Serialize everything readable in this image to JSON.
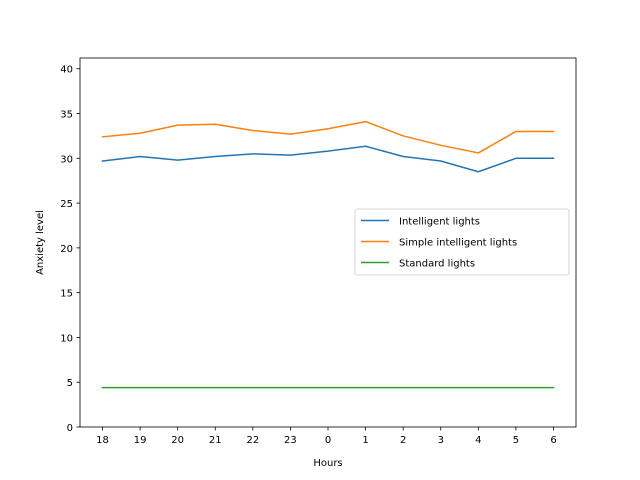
{
  "chart_data": {
    "type": "line",
    "title": "",
    "xlabel": "Hours",
    "ylabel": "Anxiety level",
    "categories": [
      "18",
      "19",
      "20",
      "21",
      "22",
      "23",
      "0",
      "1",
      "2",
      "3",
      "4",
      "5",
      "6"
    ],
    "ylim": [
      0,
      41.2
    ],
    "yticks": [
      0,
      5,
      10,
      15,
      20,
      25,
      30,
      35,
      40
    ],
    "grid": false,
    "legend_position": "center-right",
    "series": [
      {
        "name": "Intelligent lights",
        "color": "#1f77b4",
        "values": [
          29.7,
          30.2,
          29.8,
          30.2,
          30.5,
          30.35,
          30.8,
          31.35,
          30.2,
          29.7,
          28.5,
          30.0,
          30.0
        ]
      },
      {
        "name": "Simple intelligent lights",
        "color": "#ff7f0e",
        "values": [
          32.4,
          32.8,
          33.7,
          33.8,
          33.1,
          32.7,
          33.3,
          34.1,
          32.5,
          31.45,
          30.6,
          33.0,
          33.0
        ]
      },
      {
        "name": "Standard lights",
        "color": "#2ca02c",
        "values": [
          4.4,
          4.4,
          4.4,
          4.4,
          4.4,
          4.4,
          4.4,
          4.4,
          4.4,
          4.4,
          4.4,
          4.4,
          4.4
        ]
      }
    ]
  }
}
